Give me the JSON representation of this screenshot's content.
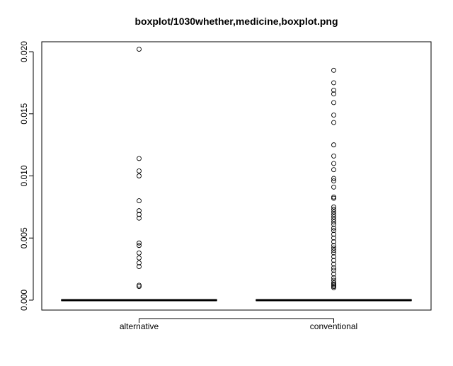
{
  "chart_data": {
    "type": "boxplot",
    "title": "boxplot/1030whether,medicine,boxplot.png",
    "xlabel": "",
    "ylabel": "",
    "ylim": [
      -0.0008,
      0.0208
    ],
    "y_ticks": [
      0.0,
      0.005,
      0.01,
      0.015,
      0.02
    ],
    "y_tick_labels": [
      "0.000",
      "0.005",
      "0.010",
      "0.015",
      "0.020"
    ],
    "grid": false,
    "categories": [
      "alternative",
      "conventional"
    ],
    "boxes": [
      {
        "category": "alternative",
        "min": 0.0,
        "q1": 0.0,
        "median": 0.0,
        "q3": 0.0,
        "max": 0.0,
        "outliers": [
          0.0202,
          0.0114,
          0.0104,
          0.01,
          0.008,
          0.0072,
          0.0069,
          0.0066,
          0.0046,
          0.0044,
          0.0038,
          0.0034,
          0.003,
          0.0027,
          0.0012,
          0.0011
        ]
      },
      {
        "category": "conventional",
        "min": 0.0,
        "q1": 0.0,
        "median": 0.0,
        "q3": 0.0,
        "max": 0.0,
        "outliers": [
          0.0185,
          0.0175,
          0.0169,
          0.0166,
          0.0159,
          0.0149,
          0.0143,
          0.0125,
          0.0116,
          0.011,
          0.0105,
          0.0098,
          0.0096,
          0.0091,
          0.0083,
          0.0082,
          0.0075,
          0.0073,
          0.0071,
          0.0069,
          0.0067,
          0.0065,
          0.0063,
          0.0061,
          0.0058,
          0.0056,
          0.0053,
          0.005,
          0.0047,
          0.0044,
          0.0042,
          0.004,
          0.0038,
          0.0035,
          0.0032,
          0.0029,
          0.0026,
          0.0024,
          0.0021,
          0.0018,
          0.0016,
          0.0014,
          0.0013,
          0.0012,
          0.0011,
          0.001
        ]
      }
    ]
  }
}
